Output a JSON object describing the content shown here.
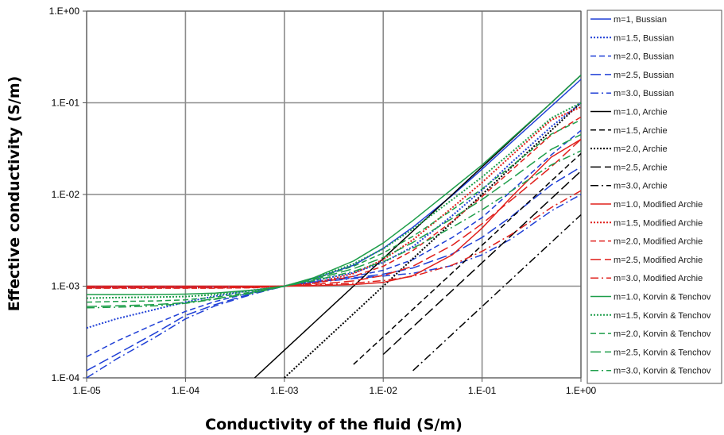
{
  "chart_data": {
    "type": "line",
    "xlabel": "Conductivity of the fluid (S/m)",
    "ylabel": "Effective conductivity (S/m)",
    "xscale": "log",
    "yscale": "log",
    "xlim": [
      1e-05,
      1
    ],
    "ylim": [
      0.0001,
      1
    ],
    "x_ticks": [
      "1.E-05",
      "1.E-04",
      "1.E-03",
      "1.E-02",
      "1.E-01",
      "1.E+00"
    ],
    "y_ticks": [
      "1.E-04",
      "1.E-03",
      "1.E-02",
      "1.E-01",
      "1.E+00"
    ],
    "grid": true,
    "legend": "right",
    "x": [
      1e-05,
      2e-05,
      5e-05,
      0.0001,
      0.0002,
      0.0005,
      0.001,
      0.002,
      0.005,
      0.01,
      0.02,
      0.05,
      0.1,
      0.2,
      0.5,
      1
    ],
    "series": [
      {
        "name": "m=1, Bussian",
        "color": "#1f3fd6",
        "dash": "solid",
        "values": [
          0.00099,
          0.00099,
          0.00099,
          0.00099,
          0.00099,
          0.00099,
          0.001,
          0.00121,
          0.00169,
          0.00259,
          0.0044,
          0.0098,
          0.0189,
          0.0374,
          0.0915,
          0.18
        ]
      },
      {
        "name": "m=1.5, Bussian",
        "color": "#1f3fd6",
        "dash": "dot",
        "values": [
          0.00035,
          0.00044,
          0.00056,
          0.00067,
          0.00078,
          0.00091,
          0.001,
          0.00115,
          0.0014,
          0.00181,
          0.0027,
          0.0059,
          0.0112,
          0.0225,
          0.0548,
          0.1
        ]
      },
      {
        "name": "m=2.0, Bussian",
        "color": "#1f3fd6",
        "dash": "dash",
        "values": [
          0.00017,
          0.00025,
          0.00039,
          0.00053,
          0.00068,
          0.00087,
          0.001,
          0.00112,
          0.00128,
          0.00149,
          0.00195,
          0.0034,
          0.0056,
          0.011,
          0.027,
          0.05
        ]
      },
      {
        "name": "m=2.5, Bussian",
        "color": "#1f3fd6",
        "dash": "longdash",
        "values": [
          0.00012,
          0.00018,
          0.00031,
          0.00048,
          0.00063,
          0.00085,
          0.001,
          0.00111,
          0.00123,
          0.00135,
          0.00158,
          0.00225,
          0.0034,
          0.0058,
          0.0127,
          0.02
        ]
      },
      {
        "name": "m=3.0, Bussian",
        "color": "#1f3fd6",
        "dash": "dashdot",
        "values": [
          0.0001,
          0.00016,
          0.00028,
          0.00044,
          0.00061,
          0.00083,
          0.001,
          0.0011,
          0.00121,
          0.00129,
          0.00138,
          0.00168,
          0.0022,
          0.0033,
          0.0066,
          0.01
        ]
      },
      {
        "name": "m=1.0, Archie",
        "color": "#000000",
        "dash": "solid",
        "values": [
          null,
          null,
          null,
          null,
          null,
          0.0001,
          0.0002,
          0.0004,
          0.001,
          0.002,
          0.004,
          0.01,
          0.02,
          0.04,
          0.1,
          0.2
        ]
      },
      {
        "name": "m=1.5, Archie",
        "color": "#000000",
        "dash": "dash",
        "values": [
          null,
          null,
          null,
          null,
          null,
          null,
          null,
          null,
          0.00014,
          0.00028,
          0.00056,
          0.0014,
          0.0028,
          0.0056,
          0.014,
          0.028
        ]
      },
      {
        "name": "m=2.0, Archie",
        "color": "#000000",
        "dash": "dot",
        "values": [
          null,
          null,
          null,
          null,
          null,
          null,
          0.0001,
          0.0002,
          0.0005,
          0.001,
          0.002,
          0.005,
          0.01,
          0.02,
          0.05,
          0.1
        ]
      },
      {
        "name": "m=2.5, Archie",
        "color": "#000000",
        "dash": "longdash",
        "values": [
          null,
          null,
          null,
          null,
          null,
          null,
          null,
          null,
          null,
          0.00018,
          0.00036,
          0.0009,
          0.0018,
          0.0036,
          0.009,
          0.018
        ]
      },
      {
        "name": "m=3.0, Archie",
        "color": "#000000",
        "dash": "dashdot",
        "values": [
          null,
          null,
          null,
          null,
          null,
          null,
          null,
          null,
          null,
          null,
          0.00012,
          0.0003,
          0.0006,
          0.0012,
          0.003,
          0.006
        ]
      },
      {
        "name": "m=1.0, Modified Archie",
        "color": "#e0201c",
        "dash": "solid",
        "values": [
          0.001,
          0.001,
          0.001,
          0.001,
          0.001,
          0.001,
          0.001,
          0.00101,
          0.00104,
          0.0011,
          0.0013,
          0.0022,
          0.0043,
          0.0095,
          0.0255,
          0.04
        ]
      },
      {
        "name": "m=1.5, Modified Archie",
        "color": "#e0201c",
        "dash": "dot",
        "values": [
          0.00096,
          0.00096,
          0.00096,
          0.00096,
          0.00096,
          0.00097,
          0.001,
          0.00108,
          0.00137,
          0.00195,
          0.0032,
          0.0072,
          0.0135,
          0.0268,
          0.0648,
          0.09
        ]
      },
      {
        "name": "m=2.0, Modified Archie",
        "color": "#e0201c",
        "dash": "dash",
        "values": [
          0.00095,
          0.00095,
          0.00095,
          0.00095,
          0.00095,
          0.00096,
          0.001,
          0.00107,
          0.00128,
          0.00165,
          0.00245,
          0.0051,
          0.0095,
          0.0185,
          0.0445,
          0.07
        ]
      },
      {
        "name": "m=2.5, Modified Archie",
        "color": "#e0201c",
        "dash": "longdash",
        "values": [
          0.00096,
          0.00096,
          0.00096,
          0.00096,
          0.00096,
          0.00097,
          0.001,
          0.00104,
          0.00114,
          0.00131,
          0.00165,
          0.0028,
          0.0048,
          0.0088,
          0.02,
          0.04
        ]
      },
      {
        "name": "m=3.0, Modified Archie",
        "color": "#e0201c",
        "dash": "dashdot",
        "values": [
          0.00097,
          0.00097,
          0.00097,
          0.00097,
          0.00097,
          0.00098,
          0.001,
          0.00102,
          0.00108,
          0.00115,
          0.00128,
          0.0017,
          0.0024,
          0.0037,
          0.0072,
          0.011
        ]
      },
      {
        "name": "m=1.0, Korvin & Tenchov",
        "color": "#1e9e4a",
        "dash": "solid",
        "values": [
          0.00081,
          0.00081,
          0.00081,
          0.00082,
          0.00084,
          0.00091,
          0.001,
          0.00124,
          0.00188,
          0.00295,
          0.0052,
          0.0115,
          0.021,
          0.041,
          0.1,
          0.2
        ]
      },
      {
        "name": "m=1.5, Korvin & Tenchov",
        "color": "#1e9e4a",
        "dash": "dot",
        "values": [
          0.00074,
          0.00075,
          0.00076,
          0.00077,
          0.00081,
          0.0009,
          0.001,
          0.00122,
          0.00175,
          0.00255,
          0.0042,
          0.0088,
          0.0155,
          0.029,
          0.068,
          0.1
        ]
      },
      {
        "name": "m=2.0, Korvin & Tenchov",
        "color": "#1e9e4a",
        "dash": "dash",
        "values": [
          0.00067,
          0.00068,
          0.00069,
          0.00071,
          0.00076,
          0.00087,
          0.001,
          0.0012,
          0.00165,
          0.0023,
          0.0035,
          0.0068,
          0.0115,
          0.0205,
          0.0455,
          0.065
        ]
      },
      {
        "name": "m=2.5, Korvin & Tenchov",
        "color": "#1e9e4a",
        "dash": "longdash",
        "values": [
          0.0006,
          0.00061,
          0.00063,
          0.00066,
          0.00073,
          0.00085,
          0.001,
          0.00118,
          0.00155,
          0.00205,
          0.003,
          0.0055,
          0.0088,
          0.015,
          0.031,
          0.045
        ]
      },
      {
        "name": "m=3.0, Korvin & Tenchov",
        "color": "#1e9e4a",
        "dash": "dashdot",
        "values": [
          0.00058,
          0.00059,
          0.00061,
          0.00065,
          0.00072,
          0.00085,
          0.001,
          0.00115,
          0.00145,
          0.00185,
          0.0026,
          0.0044,
          0.0068,
          0.011,
          0.021,
          0.03
        ]
      }
    ]
  }
}
